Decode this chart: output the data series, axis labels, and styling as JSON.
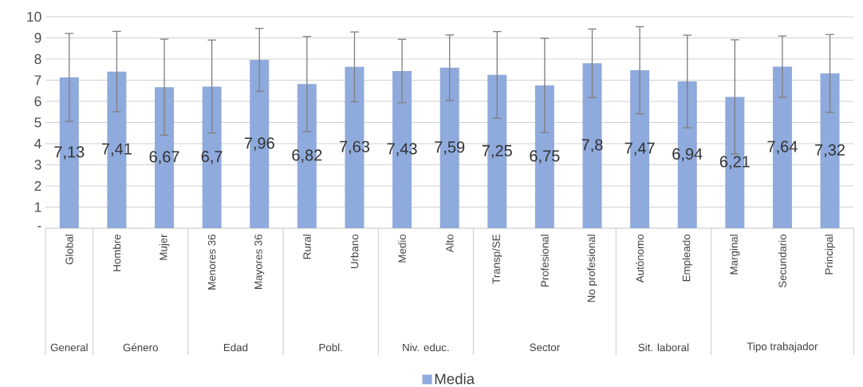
{
  "chart_data": {
    "type": "bar",
    "categories": [
      "Global",
      "Hombre",
      "Mujer",
      "Menores 36",
      "Mayores 36",
      "Rural",
      "Urbano",
      "Medio",
      "Alto",
      "Transp/SE",
      "Profesional",
      "No profesional",
      "Autónomo",
      "Empleado",
      "Marginal",
      "Secundario",
      "Principal"
    ],
    "series": [
      {
        "name": "Media",
        "color": "#8faadc",
        "values": [
          7.13,
          7.41,
          6.67,
          6.7,
          7.96,
          6.82,
          7.63,
          7.43,
          7.59,
          7.25,
          6.75,
          7.8,
          7.47,
          6.94,
          6.21,
          7.64,
          7.32
        ],
        "errors": [
          2.08,
          1.9,
          2.27,
          2.2,
          1.49,
          2.25,
          1.65,
          1.5,
          1.55,
          2.05,
          2.23,
          1.62,
          2.06,
          2.19,
          2.7,
          1.45,
          1.84
        ],
        "value_labels": [
          "7,13",
          "7,41",
          "6,67",
          "6,7",
          "7,96",
          "6,82",
          "7,63",
          "7,43",
          "7,59",
          "7,25",
          "6,75",
          "7,8",
          "7,47",
          "6,94",
          "6,21",
          "7,64",
          "7,32"
        ]
      }
    ],
    "ylim": [
      0,
      10
    ],
    "yticks": [
      {
        "value": 0,
        "label": "-"
      },
      1,
      2,
      3,
      4,
      5,
      6,
      7,
      8,
      9,
      10
    ],
    "grid": "y",
    "legend": "bottom",
    "annotations": [
      "General",
      "Género",
      "Edad",
      "Pobl.",
      "Niv. educ.",
      "Sector",
      "Sit. laboral",
      "Tipo trabajador"
    ]
  }
}
